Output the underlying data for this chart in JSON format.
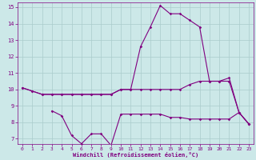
{
  "line1": [
    10.1,
    9.9,
    9.7,
    9.7,
    9.7,
    9.7,
    9.7,
    9.7,
    9.7,
    9.7,
    10.0,
    10.0,
    12.6,
    13.8,
    15.1,
    14.6,
    14.6,
    14.2,
    13.8,
    10.5,
    10.5,
    10.7,
    8.6,
    7.9
  ],
  "line2": [
    10.1,
    9.9,
    9.7,
    9.7,
    9.7,
    9.7,
    9.7,
    9.7,
    9.7,
    9.7,
    10.0,
    10.0,
    10.0,
    10.0,
    10.0,
    10.0,
    10.0,
    10.3,
    10.5,
    10.5,
    10.5,
    10.5,
    8.6,
    7.9
  ],
  "line3": [
    null,
    null,
    null,
    8.7,
    8.4,
    7.2,
    6.7,
    7.3,
    7.3,
    6.6,
    8.5,
    8.5,
    8.5,
    8.5,
    8.5,
    8.3,
    8.3,
    8.2,
    8.2,
    8.2,
    8.2,
    8.2,
    8.6,
    7.9
  ],
  "x_min": 0,
  "x_max": 23,
  "y_min": 7,
  "y_max": 15,
  "color": "#800080",
  "bg_color": "#cce8e8",
  "grid_color": "#aacccc",
  "xlabel": "Windchill (Refroidissement éolien,°C)"
}
